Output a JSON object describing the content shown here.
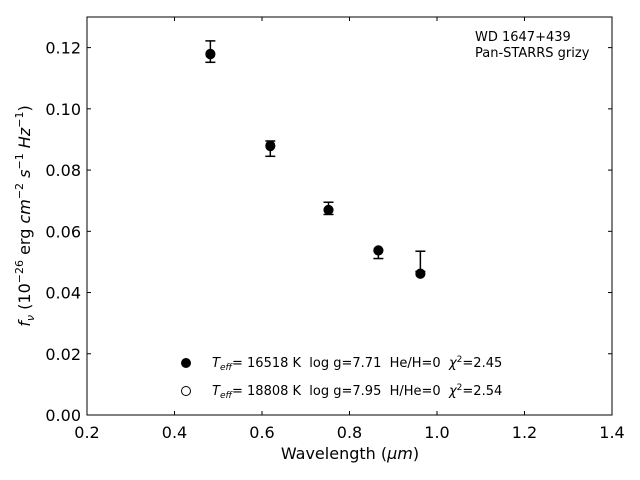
{
  "chart_data": {
    "type": "scatter",
    "xlabel_prefix": "Wavelength (",
    "xlabel_unit": "μm",
    "xlabel_suffix": ")",
    "ylabel": "f_ν (10^-26 erg cm^-2 s^-1 Hz^-1)",
    "xlim": [
      0.2,
      1.4
    ],
    "ylim": [
      0.0,
      0.13
    ],
    "xticks": [
      0.2,
      0.4,
      0.6,
      0.8,
      1.0,
      1.2,
      1.4
    ],
    "xtick_labels": [
      "0.2",
      "0.4",
      "0.6",
      "0.8",
      "1.0",
      "1.2",
      "1.4"
    ],
    "yticks": [
      0.0,
      0.02,
      0.04,
      0.06,
      0.08,
      0.1,
      0.12
    ],
    "ytick_labels": [
      "0.00",
      "0.02",
      "0.04",
      "0.06",
      "0.08",
      "0.10",
      "0.12"
    ],
    "grid": false,
    "annotation": [
      "WD 1647+439",
      "Pan-STARRS grizy"
    ],
    "observed": [
      {
        "x": 0.482,
        "y": 0.1187,
        "err_low": 0.0035,
        "err_high": 0.0035
      },
      {
        "x": 0.619,
        "y": 0.087,
        "err_low": 0.0025,
        "err_high": 0.0025
      },
      {
        "x": 0.752,
        "y": 0.0675,
        "err_low": 0.002,
        "err_high": 0.002
      },
      {
        "x": 0.866,
        "y": 0.0524,
        "err_low": 0.0013,
        "err_high": 0.0013
      },
      {
        "x": 0.962,
        "y": 0.0502,
        "err_low": 0.0033,
        "err_high": 0.0033
      }
    ],
    "series": [
      {
        "marker": "filled-circle",
        "x": [
          0.482,
          0.619,
          0.752,
          0.866,
          0.962
        ],
        "y": [
          0.118,
          0.088,
          0.067,
          0.0537,
          0.0461
        ]
      },
      {
        "marker": "open-circle",
        "x": [
          0.482,
          0.619,
          0.752,
          0.866,
          0.962
        ],
        "y": [
          0.1178,
          0.0878,
          0.067,
          0.0538,
          0.0462
        ]
      }
    ],
    "legend": {
      "placement": "lower-center",
      "entries": [
        {
          "marker": "filled-circle",
          "teff_prefix": "T",
          "teff_sub": "eff",
          "model_rest": "= 16518 K  log g=7.71  He/H=0  ",
          "chi_label": "χ",
          "chi_exp": "2",
          "chi_value": "=2.45"
        },
        {
          "marker": "open-circle",
          "teff_prefix": "T",
          "teff_sub": "eff",
          "model_rest": "= 18808 K  log g=7.95  H/He=0  ",
          "chi_label": "χ",
          "chi_exp": "2",
          "chi_value": "=2.54"
        }
      ]
    }
  }
}
